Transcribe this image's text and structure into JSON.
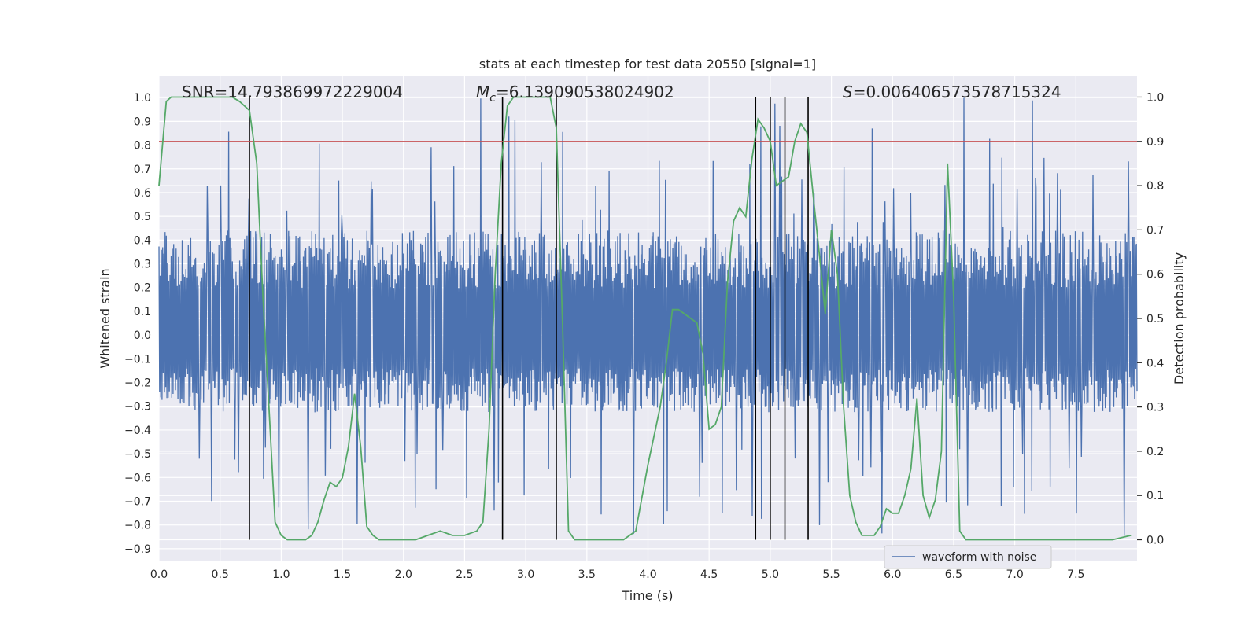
{
  "chart_data": {
    "type": "line",
    "title": "stats at each timestep for test data 20550 [signal=1]",
    "xlabel": "Time (s)",
    "ylabel": "Whitened strain",
    "ylabel_right": "Detection probability",
    "xlim": [
      0,
      8
    ],
    "ylim": [
      -0.95,
      1.09
    ],
    "ylim_right": [
      -0.047,
      1.047
    ],
    "xticks": [
      0.0,
      0.5,
      1.0,
      1.5,
      2.0,
      2.5,
      3.0,
      3.5,
      4.0,
      4.5,
      5.0,
      5.5,
      6.0,
      6.5,
      7.0,
      7.5
    ],
    "yticks": [
      1.0,
      0.9,
      0.8,
      0.7,
      0.6,
      0.5,
      0.4,
      0.3,
      0.2,
      0.1,
      0.0,
      -0.1,
      -0.2,
      -0.3,
      -0.4,
      -0.5,
      -0.6,
      -0.7,
      -0.8,
      -0.9
    ],
    "yticks_right": [
      1.0,
      0.9,
      0.8,
      0.7,
      0.6,
      0.5,
      0.4,
      0.3,
      0.2,
      0.1,
      0.0
    ],
    "grid": true,
    "legend": {
      "entries": [
        "waveform with noise"
      ],
      "placement": "lower-right"
    },
    "annotations": {
      "snr": "SNR=14.793869972229004",
      "mc_symbol": "M",
      "mc_subscript": "c",
      "mc_value": "=6.139090538024902",
      "s_symbol": "S",
      "s_value": "=0.006406573578715324"
    },
    "threshold_probability": 0.9,
    "vertical_markers": [
      0.74,
      2.81,
      3.25,
      4.88,
      5.0,
      5.12,
      5.31
    ],
    "series": [
      {
        "name": "waveform with noise",
        "kind": "noise-waveform",
        "color": "#4c72b0",
        "samples": 1600,
        "dense_band": [
          -0.31,
          0.44
        ],
        "spike_range": [
          -0.86,
          1.0
        ]
      },
      {
        "name": "detection probability",
        "axis": "right",
        "color": "#55a868",
        "x": [
          0.0,
          0.06,
          0.1,
          0.2,
          0.3,
          0.4,
          0.5,
          0.6,
          0.66,
          0.74,
          0.8,
          0.85,
          0.9,
          0.95,
          1.0,
          1.05,
          1.1,
          1.2,
          1.25,
          1.3,
          1.35,
          1.4,
          1.45,
          1.5,
          1.55,
          1.6,
          1.65,
          1.7,
          1.75,
          1.8,
          1.9,
          2.0,
          2.1,
          2.2,
          2.3,
          2.4,
          2.5,
          2.6,
          2.65,
          2.7,
          2.75,
          2.8,
          2.85,
          2.9,
          3.0,
          3.1,
          3.2,
          3.25,
          3.3,
          3.35,
          3.4,
          3.5,
          3.6,
          3.7,
          3.8,
          3.85,
          3.9,
          4.0,
          4.1,
          4.15,
          4.2,
          4.25,
          4.3,
          4.35,
          4.4,
          4.45,
          4.5,
          4.55,
          4.6,
          4.65,
          4.7,
          4.75,
          4.8,
          4.85,
          4.9,
          4.95,
          5.0,
          5.05,
          5.1,
          5.15,
          5.2,
          5.25,
          5.3,
          5.35,
          5.4,
          5.45,
          5.5,
          5.55,
          5.6,
          5.65,
          5.7,
          5.75,
          5.8,
          5.85,
          5.9,
          5.95,
          6.0,
          6.05,
          6.1,
          6.15,
          6.2,
          6.25,
          6.3,
          6.35,
          6.4,
          6.45,
          6.5,
          6.55,
          6.6,
          6.65,
          6.7,
          6.8,
          6.9,
          7.0,
          7.2,
          7.4,
          7.6,
          7.8,
          7.95
        ],
        "y": [
          0.8,
          0.99,
          1.0,
          1.0,
          1.0,
          1.0,
          1.0,
          1.0,
          0.99,
          0.97,
          0.85,
          0.55,
          0.3,
          0.04,
          0.01,
          0.0,
          0.0,
          0.0,
          0.01,
          0.04,
          0.09,
          0.13,
          0.12,
          0.14,
          0.21,
          0.33,
          0.21,
          0.03,
          0.01,
          0.0,
          0.0,
          0.0,
          0.0,
          0.01,
          0.02,
          0.01,
          0.01,
          0.02,
          0.04,
          0.25,
          0.6,
          0.85,
          0.98,
          1.0,
          1.0,
          1.0,
          1.0,
          0.93,
          0.5,
          0.02,
          0.0,
          0.0,
          0.0,
          0.0,
          0.0,
          0.01,
          0.02,
          0.17,
          0.3,
          0.4,
          0.52,
          0.52,
          0.51,
          0.5,
          0.49,
          0.42,
          0.25,
          0.26,
          0.3,
          0.58,
          0.72,
          0.75,
          0.73,
          0.86,
          0.95,
          0.93,
          0.9,
          0.8,
          0.81,
          0.82,
          0.9,
          0.94,
          0.92,
          0.78,
          0.65,
          0.51,
          0.7,
          0.6,
          0.3,
          0.1,
          0.04,
          0.01,
          0.01,
          0.01,
          0.03,
          0.07,
          0.06,
          0.06,
          0.1,
          0.16,
          0.32,
          0.1,
          0.05,
          0.09,
          0.2,
          0.85,
          0.55,
          0.02,
          0.0,
          0.0,
          0.0,
          0.0,
          0.0,
          0.0,
          0.0,
          0.0,
          0.0,
          0.0,
          0.01
        ]
      }
    ]
  }
}
